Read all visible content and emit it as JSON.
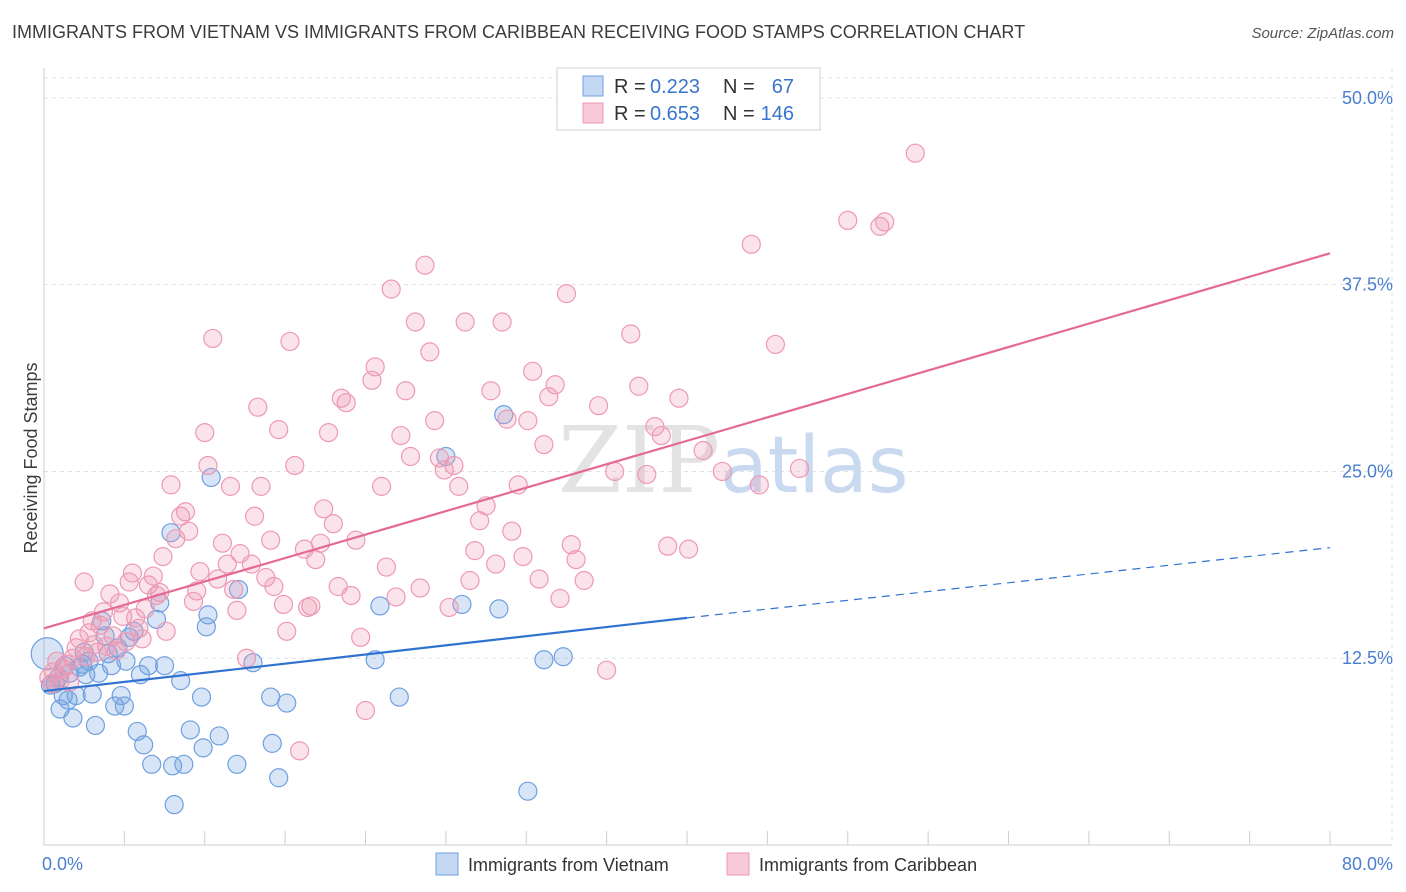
{
  "chart_data": {
    "type": "scatter",
    "title": "IMMIGRANTS FROM VIETNAM VS IMMIGRANTS FROM CARIBBEAN RECEIVING FOOD STAMPS CORRELATION CHART",
    "source": "Source: ZipAtlas.com",
    "ylabel": "Receiving Food Stamps",
    "xlabel": "",
    "xlim": [
      0,
      80
    ],
    "ylim": [
      0,
      52
    ],
    "x_ticks_labels": [
      "0.0%",
      "80.0%"
    ],
    "y_ticks": [
      12.5,
      25.0,
      37.5,
      50.0
    ],
    "y_tick_labels": [
      "12.5%",
      "25.0%",
      "37.5%",
      "50.0%"
    ],
    "watermark": {
      "zip": "ZIP",
      "atlas": "atlas"
    },
    "legend_box": [
      {
        "r_label": "R =",
        "r_value": "0.223",
        "n_label": "N =",
        "n_value": "67"
      },
      {
        "r_label": "R =",
        "r_value": "0.653",
        "n_label": "N =",
        "n_value": "146"
      }
    ],
    "series": [
      {
        "name": "Immigrants from Vietnam",
        "color": "#6fa0e0",
        "line_color": "#2f72d0",
        "trend": {
          "x0": 0,
          "y0": 10.3,
          "x1": 40,
          "y1": 15.2,
          "dash_to_x": 80,
          "dash_to_y": 19.9
        },
        "points": [
          [
            0.2,
            12.8
          ],
          [
            0.4,
            10.7
          ],
          [
            0.5,
            10.8
          ],
          [
            0.7,
            10.8
          ],
          [
            0.9,
            11.2
          ],
          [
            1.0,
            9.1
          ],
          [
            1.2,
            10.0
          ],
          [
            1.3,
            12.0
          ],
          [
            1.5,
            9.7
          ],
          [
            1.6,
            11.5
          ],
          [
            1.8,
            8.5
          ],
          [
            2.0,
            10.0
          ],
          [
            2.2,
            11.9
          ],
          [
            2.4,
            12.1
          ],
          [
            2.5,
            12.9
          ],
          [
            2.6,
            11.4
          ],
          [
            2.8,
            12.3
          ],
          [
            3.0,
            10.1
          ],
          [
            3.2,
            8.0
          ],
          [
            3.4,
            11.5
          ],
          [
            3.6,
            15.0
          ],
          [
            3.8,
            14.0
          ],
          [
            4.0,
            12.8
          ],
          [
            4.2,
            12.0
          ],
          [
            4.4,
            9.3
          ],
          [
            4.6,
            13.2
          ],
          [
            4.8,
            10.0
          ],
          [
            5.0,
            9.3
          ],
          [
            5.1,
            12.3
          ],
          [
            5.3,
            13.9
          ],
          [
            5.6,
            14.3
          ],
          [
            5.8,
            7.6
          ],
          [
            6.0,
            11.4
          ],
          [
            6.2,
            6.7
          ],
          [
            6.5,
            12.0
          ],
          [
            6.7,
            5.4
          ],
          [
            7.0,
            15.1
          ],
          [
            7.2,
            16.2
          ],
          [
            7.5,
            12.0
          ],
          [
            7.9,
            20.9
          ],
          [
            8.0,
            5.3
          ],
          [
            8.1,
            2.7
          ],
          [
            8.5,
            11.0
          ],
          [
            8.7,
            5.4
          ],
          [
            9.1,
            7.7
          ],
          [
            9.8,
            9.9
          ],
          [
            9.9,
            6.5
          ],
          [
            10.1,
            14.6
          ],
          [
            10.2,
            15.4
          ],
          [
            10.4,
            24.6
          ],
          [
            10.9,
            7.3
          ],
          [
            12.0,
            5.4
          ],
          [
            12.1,
            17.1
          ],
          [
            13.0,
            12.2
          ],
          [
            14.1,
            9.9
          ],
          [
            14.2,
            6.8
          ],
          [
            14.6,
            4.5
          ],
          [
            15.1,
            9.5
          ],
          [
            20.6,
            12.4
          ],
          [
            20.9,
            16.0
          ],
          [
            22.1,
            9.9
          ],
          [
            25.0,
            26.0
          ],
          [
            26.0,
            16.1
          ],
          [
            28.3,
            15.8
          ],
          [
            28.6,
            28.8
          ],
          [
            30.1,
            3.6
          ],
          [
            31.1,
            12.4
          ],
          [
            32.3,
            12.6
          ]
        ],
        "sizes": {
          "0": 28
        }
      },
      {
        "name": "Immigrants from Caribbean",
        "color": "#ee99b3",
        "line_color": "#e46a92",
        "trend": {
          "x0": 0,
          "y0": 14.5,
          "x1": 80,
          "y1": 39.6
        },
        "points": [
          [
            0.3,
            11.2
          ],
          [
            0.5,
            10.8
          ],
          [
            0.6,
            11.6
          ],
          [
            0.8,
            12.3
          ],
          [
            1.0,
            11.0
          ],
          [
            1.2,
            11.8
          ],
          [
            1.4,
            12.1
          ],
          [
            1.6,
            10.9
          ],
          [
            1.8,
            12.5
          ],
          [
            2.0,
            13.2
          ],
          [
            2.2,
            13.8
          ],
          [
            2.5,
            17.6
          ],
          [
            2.6,
            12.6
          ],
          [
            2.8,
            14.2
          ],
          [
            3.0,
            15.0
          ],
          [
            3.1,
            13.4
          ],
          [
            3.3,
            12.9
          ],
          [
            3.5,
            14.7
          ],
          [
            3.7,
            15.6
          ],
          [
            3.9,
            13.3
          ],
          [
            4.1,
            16.8
          ],
          [
            4.3,
            14.0
          ],
          [
            4.5,
            13.0
          ],
          [
            4.7,
            16.2
          ],
          [
            4.9,
            15.3
          ],
          [
            5.1,
            13.6
          ],
          [
            5.3,
            17.6
          ],
          [
            5.5,
            18.2
          ],
          [
            5.7,
            15.2
          ],
          [
            5.9,
            14.5
          ],
          [
            6.1,
            13.8
          ],
          [
            6.3,
            15.8
          ],
          [
            6.5,
            17.4
          ],
          [
            6.8,
            18.0
          ],
          [
            7.0,
            16.7
          ],
          [
            7.2,
            16.9
          ],
          [
            7.4,
            19.3
          ],
          [
            7.6,
            14.3
          ],
          [
            7.9,
            24.1
          ],
          [
            8.2,
            20.5
          ],
          [
            8.5,
            22.0
          ],
          [
            8.8,
            22.3
          ],
          [
            9.0,
            21.0
          ],
          [
            9.3,
            16.3
          ],
          [
            9.5,
            17.0
          ],
          [
            9.7,
            18.3
          ],
          [
            10.0,
            27.6
          ],
          [
            10.2,
            25.4
          ],
          [
            10.5,
            33.9
          ],
          [
            10.8,
            17.8
          ],
          [
            11.1,
            20.2
          ],
          [
            11.4,
            18.8
          ],
          [
            11.6,
            24.0
          ],
          [
            11.8,
            17.1
          ],
          [
            12.0,
            15.7
          ],
          [
            12.2,
            19.5
          ],
          [
            12.6,
            12.5
          ],
          [
            12.9,
            18.8
          ],
          [
            13.1,
            22.0
          ],
          [
            13.3,
            29.3
          ],
          [
            13.5,
            24.0
          ],
          [
            13.8,
            17.9
          ],
          [
            14.1,
            20.4
          ],
          [
            14.3,
            17.3
          ],
          [
            14.6,
            27.8
          ],
          [
            14.9,
            16.1
          ],
          [
            15.1,
            14.3
          ],
          [
            15.3,
            33.7
          ],
          [
            15.6,
            25.4
          ],
          [
            15.9,
            6.3
          ],
          [
            16.2,
            19.8
          ],
          [
            16.4,
            15.9
          ],
          [
            16.6,
            16.0
          ],
          [
            16.9,
            19.1
          ],
          [
            17.2,
            20.2
          ],
          [
            17.4,
            22.5
          ],
          [
            17.7,
            27.6
          ],
          [
            18.0,
            21.5
          ],
          [
            18.3,
            17.3
          ],
          [
            18.5,
            29.9
          ],
          [
            18.8,
            29.6
          ],
          [
            19.1,
            16.7
          ],
          [
            19.4,
            20.4
          ],
          [
            19.7,
            13.9
          ],
          [
            20.0,
            9.0
          ],
          [
            20.4,
            31.1
          ],
          [
            20.6,
            32.0
          ],
          [
            21.0,
            24.0
          ],
          [
            21.3,
            18.6
          ],
          [
            21.6,
            37.2
          ],
          [
            21.9,
            16.6
          ],
          [
            22.2,
            27.4
          ],
          [
            22.5,
            30.4
          ],
          [
            22.8,
            26.0
          ],
          [
            23.1,
            35.0
          ],
          [
            23.4,
            17.2
          ],
          [
            23.7,
            38.8
          ],
          [
            24.0,
            33.0
          ],
          [
            24.3,
            28.4
          ],
          [
            24.6,
            25.9
          ],
          [
            24.9,
            25.1
          ],
          [
            25.2,
            15.9
          ],
          [
            25.5,
            25.4
          ],
          [
            25.8,
            24.0
          ],
          [
            26.2,
            35.0
          ],
          [
            26.5,
            17.7
          ],
          [
            26.8,
            19.7
          ],
          [
            27.1,
            21.7
          ],
          [
            27.5,
            22.7
          ],
          [
            27.8,
            30.4
          ],
          [
            28.1,
            18.8
          ],
          [
            28.5,
            35.0
          ],
          [
            28.8,
            28.5
          ],
          [
            29.1,
            21.0
          ],
          [
            29.5,
            24.1
          ],
          [
            29.8,
            19.3
          ],
          [
            30.1,
            28.4
          ],
          [
            30.4,
            31.7
          ],
          [
            30.8,
            17.8
          ],
          [
            31.1,
            26.8
          ],
          [
            31.4,
            30.0
          ],
          [
            31.8,
            30.8
          ],
          [
            32.1,
            16.5
          ],
          [
            32.5,
            36.9
          ],
          [
            32.8,
            20.1
          ],
          [
            33.1,
            19.1
          ],
          [
            33.6,
            17.7
          ],
          [
            34.5,
            29.4
          ],
          [
            35.0,
            11.7
          ],
          [
            35.5,
            25.0
          ],
          [
            36.5,
            34.2
          ],
          [
            37.0,
            30.7
          ],
          [
            37.5,
            24.8
          ],
          [
            38.0,
            28.0
          ],
          [
            38.4,
            27.4
          ],
          [
            38.8,
            20.0
          ],
          [
            39.5,
            29.9
          ],
          [
            40.1,
            19.8
          ],
          [
            41.0,
            26.4
          ],
          [
            42.2,
            25.0
          ],
          [
            44.0,
            40.2
          ],
          [
            44.5,
            24.1
          ],
          [
            45.5,
            33.5
          ],
          [
            47.0,
            25.2
          ],
          [
            50.0,
            41.8
          ],
          [
            52.0,
            41.4
          ],
          [
            52.3,
            41.7
          ],
          [
            54.2,
            46.3
          ]
        ]
      }
    ],
    "bottom_legend": [
      "Immigrants from Vietnam",
      "Immigrants from Caribbean"
    ]
  }
}
